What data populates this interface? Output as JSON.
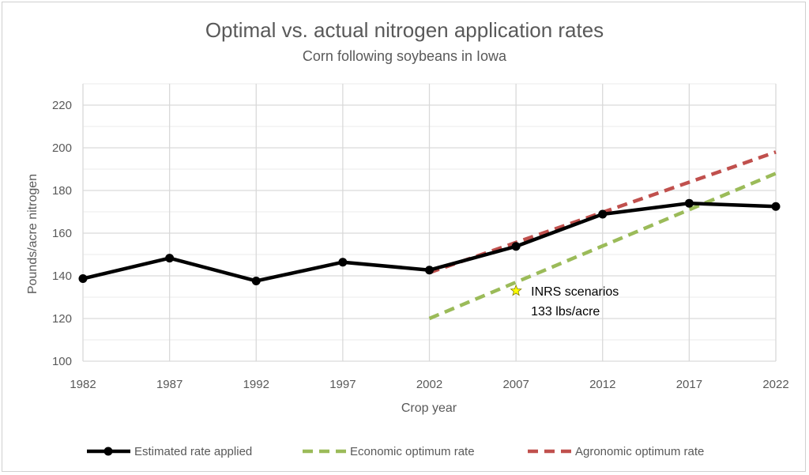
{
  "chart_data": {
    "type": "line",
    "title": "Optimal vs. actual nitrogen application rates",
    "subtitle": "Corn following soybeans in Iowa",
    "xlabel": "Crop year",
    "ylabel": "Pounds/acre nitrogen",
    "x": [
      1982,
      1987,
      1992,
      1997,
      2002,
      2007,
      2012,
      2017,
      2022
    ],
    "xticks": [
      "1982",
      "1987",
      "1992",
      "1997",
      "2002",
      "2007",
      "2012",
      "2017",
      "2022"
    ],
    "yticks": [
      "100",
      "120",
      "140",
      "160",
      "180",
      "200",
      "220"
    ],
    "ylim": [
      100,
      230
    ],
    "xlim": [
      1982,
      2022
    ],
    "grid": true,
    "legend_position": "bottom",
    "series": [
      {
        "name": "Estimated rate applied",
        "color": "#000000",
        "style": "solid-markers",
        "x": [
          1982,
          1987,
          1992,
          1997,
          2002,
          2007,
          2012,
          2017,
          2022
        ],
        "values": [
          138.7,
          148.3,
          137.6,
          146.4,
          142.7,
          153.8,
          168.9,
          174.0,
          172.5
        ]
      },
      {
        "name": "Economic optimum rate",
        "color": "#9bbb59",
        "style": "dashed",
        "x": [
          2002,
          2022
        ],
        "values": [
          120,
          188
        ]
      },
      {
        "name": "Agronomic optimum rate",
        "color": "#c0504d",
        "style": "dashed",
        "x": [
          2002,
          2022
        ],
        "values": [
          141.5,
          198
        ]
      }
    ],
    "annotations": [
      {
        "marker": "star",
        "marker_color": "#ffff00",
        "x": 2007,
        "y": 133,
        "lines": [
          "INRS scenarios",
          "133 lbs/acre"
        ]
      }
    ]
  }
}
